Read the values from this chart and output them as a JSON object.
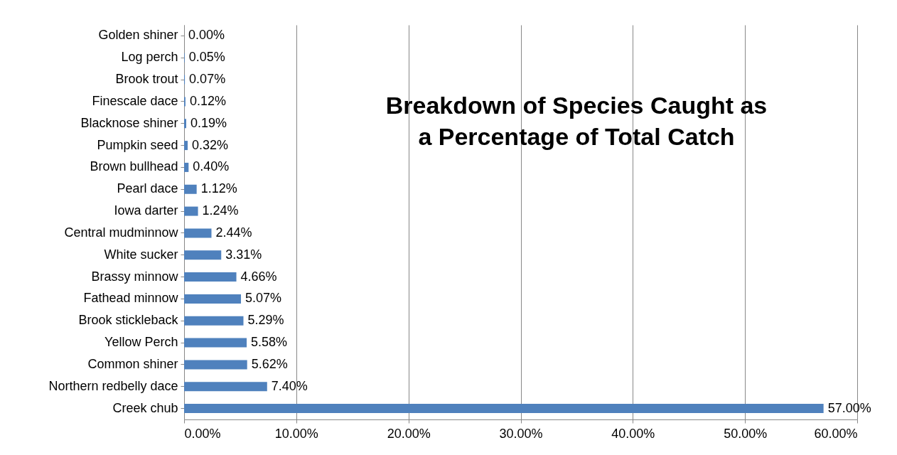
{
  "chart_data": {
    "type": "bar",
    "orientation": "horizontal",
    "title": "Breakdown of Species Caught as a Percentage of Total Catch",
    "categories": [
      "Golden shiner",
      "Log perch",
      "Brook trout",
      "Finescale dace",
      "Blacknose shiner",
      "Pumpkin seed",
      "Brown bullhead",
      "Pearl dace",
      "Iowa darter",
      "Central mudminnow",
      "White sucker",
      "Brassy minnow",
      "Fathead minnow",
      "Brook stickleback",
      "Yellow Perch",
      "Common shiner",
      "Northern redbelly dace",
      "Creek chub"
    ],
    "values": [
      0.0,
      0.05,
      0.07,
      0.12,
      0.19,
      0.32,
      0.4,
      1.12,
      1.24,
      2.44,
      3.31,
      4.66,
      5.07,
      5.29,
      5.58,
      5.62,
      7.4,
      57.0
    ],
    "value_labels": [
      "0.00%",
      "0.05%",
      "0.07%",
      "0.12%",
      "0.19%",
      "0.32%",
      "0.40%",
      "1.12%",
      "1.24%",
      "2.44%",
      "3.31%",
      "4.66%",
      "5.07%",
      "5.29%",
      "5.58%",
      "5.62%",
      "7.40%",
      "57.00%"
    ],
    "color": "#4f81bd",
    "xlim": [
      0,
      60
    ],
    "xticks": [
      {
        "value": 0,
        "label": "0.00%"
      },
      {
        "value": 10,
        "label": "10.00%"
      },
      {
        "value": 20,
        "label": "20.00%"
      },
      {
        "value": 30,
        "label": "30.00%"
      },
      {
        "value": 40,
        "label": "40.00%"
      },
      {
        "value": 50,
        "label": "50.00%"
      },
      {
        "value": 60,
        "label": "60.00%"
      }
    ],
    "grid": "x"
  }
}
